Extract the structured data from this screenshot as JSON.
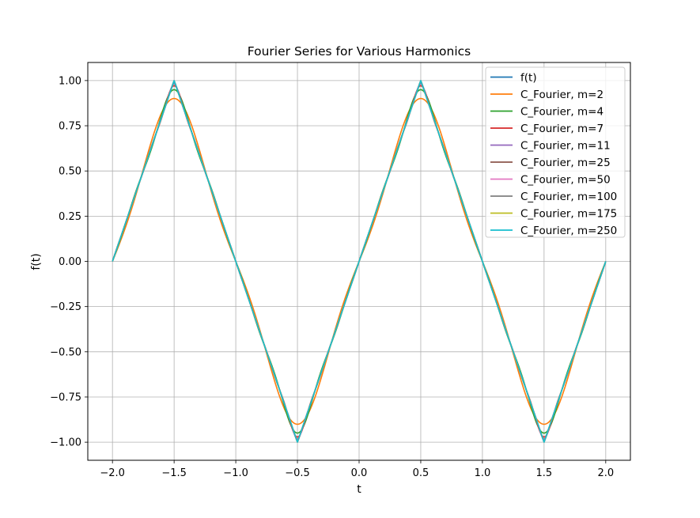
{
  "chart_data": {
    "type": "line",
    "title": "Fourier Series for Various Harmonics",
    "xlabel": "t",
    "ylabel": "f(t)",
    "xlim": [
      -2.2,
      2.2
    ],
    "ylim": [
      -1.1,
      1.1
    ],
    "x_ticks": [
      -2.0,
      -1.5,
      -1.0,
      -0.5,
      0.0,
      0.5,
      1.0,
      1.5,
      2.0
    ],
    "x_tick_labels": [
      "−2.0",
      "−1.5",
      "−1.0",
      "−0.5",
      "0.0",
      "0.5",
      "1.0",
      "1.5",
      "2.0"
    ],
    "y_ticks": [
      -1.0,
      -0.75,
      -0.5,
      -0.25,
      0.0,
      0.25,
      0.5,
      0.75,
      1.0
    ],
    "y_tick_labels": [
      "−1.00",
      "−0.75",
      "−0.50",
      "−0.25",
      "0.00",
      "0.25",
      "0.50",
      "0.75",
      "1.00"
    ],
    "grid": true,
    "legend_position": "top-right",
    "x_domain": [
      -2.0,
      2.0
    ],
    "series": [
      {
        "name": "f(t)",
        "color": "#1f77b4",
        "harmonics": 0,
        "exact": true
      },
      {
        "name": "C_Fourier, m=2",
        "color": "#ff7f0e",
        "harmonics": 2
      },
      {
        "name": "C_Fourier, m=4",
        "color": "#2ca02c",
        "harmonics": 4
      },
      {
        "name": "C_Fourier, m=7",
        "color": "#d62728",
        "harmonics": 7
      },
      {
        "name": "C_Fourier, m=11",
        "color": "#9467bd",
        "harmonics": 11
      },
      {
        "name": "C_Fourier, m=25",
        "color": "#8c564b",
        "harmonics": 25
      },
      {
        "name": "C_Fourier, m=50",
        "color": "#e377c2",
        "harmonics": 50
      },
      {
        "name": "C_Fourier, m=100",
        "color": "#7f7f7f",
        "harmonics": 100
      },
      {
        "name": "C_Fourier, m=175",
        "color": "#bcbd22",
        "harmonics": 175
      },
      {
        "name": "C_Fourier, m=250",
        "color": "#17becf",
        "harmonics": 250
      }
    ]
  }
}
